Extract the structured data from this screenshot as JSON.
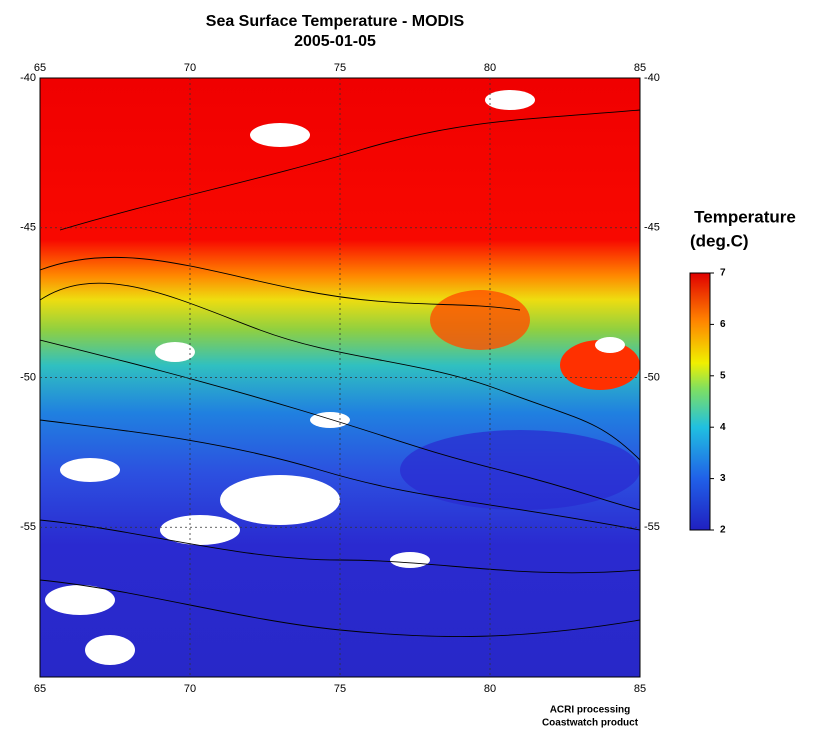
{
  "title": "Sea Surface Temperature - MODIS",
  "subtitle": "2005-01-05",
  "lonlim": [
    65,
    85
  ],
  "lon_ticks": [
    65,
    70,
    75,
    80,
    85
  ],
  "latlim": [
    -60,
    -40
  ],
  "lat_ticks": [
    -40,
    -45,
    -50,
    -55
  ],
  "colorbar": {
    "title": "Temperature",
    "unit": "(deg.C)",
    "lim": [
      2,
      7
    ],
    "ticks": [
      2,
      3,
      4,
      5,
      6,
      7
    ]
  },
  "credits": [
    "ACRI processing",
    "Coastwatch product"
  ]
}
